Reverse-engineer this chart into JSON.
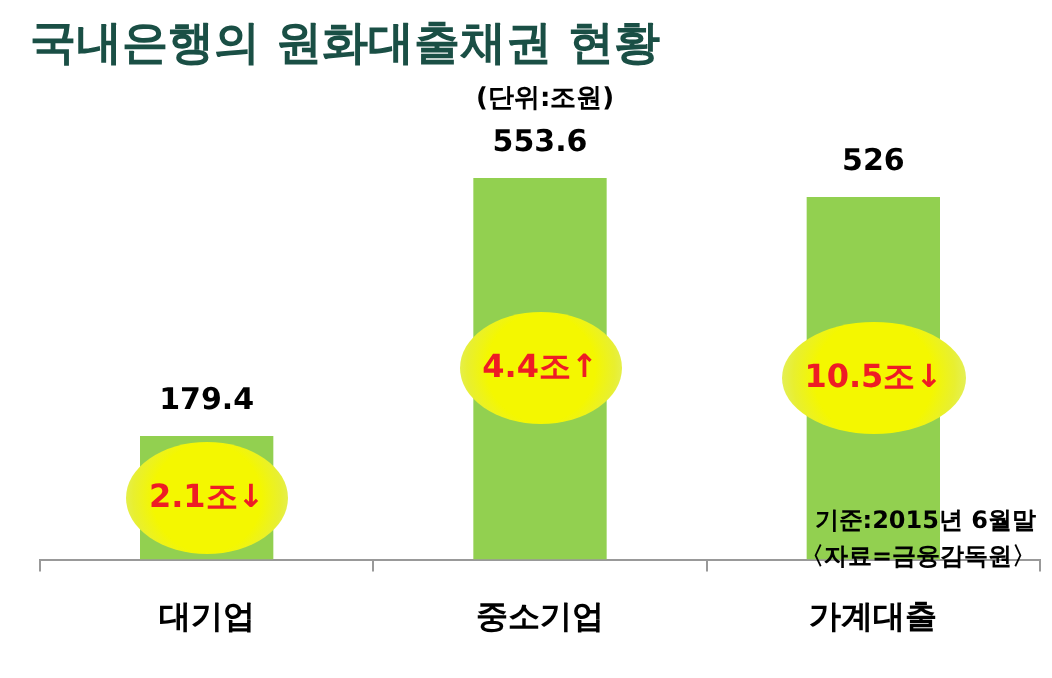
{
  "chart_data": {
    "type": "bar",
    "title": "국내은행의 원화대출채권 현황",
    "subtitle": "(단위:조원)",
    "categories": [
      "대기업",
      "중소기업",
      "가계대출"
    ],
    "values": [
      179.4,
      553.6,
      526
    ],
    "color": "#92d050",
    "data_labels": true,
    "grid": false,
    "legend": false,
    "annotations": [
      "2.1조↓",
      "4.4조↑",
      "10.5조↓",
      "기준:2015년 6월말",
      "〈자료=금융감독원〉"
    ]
  }
}
